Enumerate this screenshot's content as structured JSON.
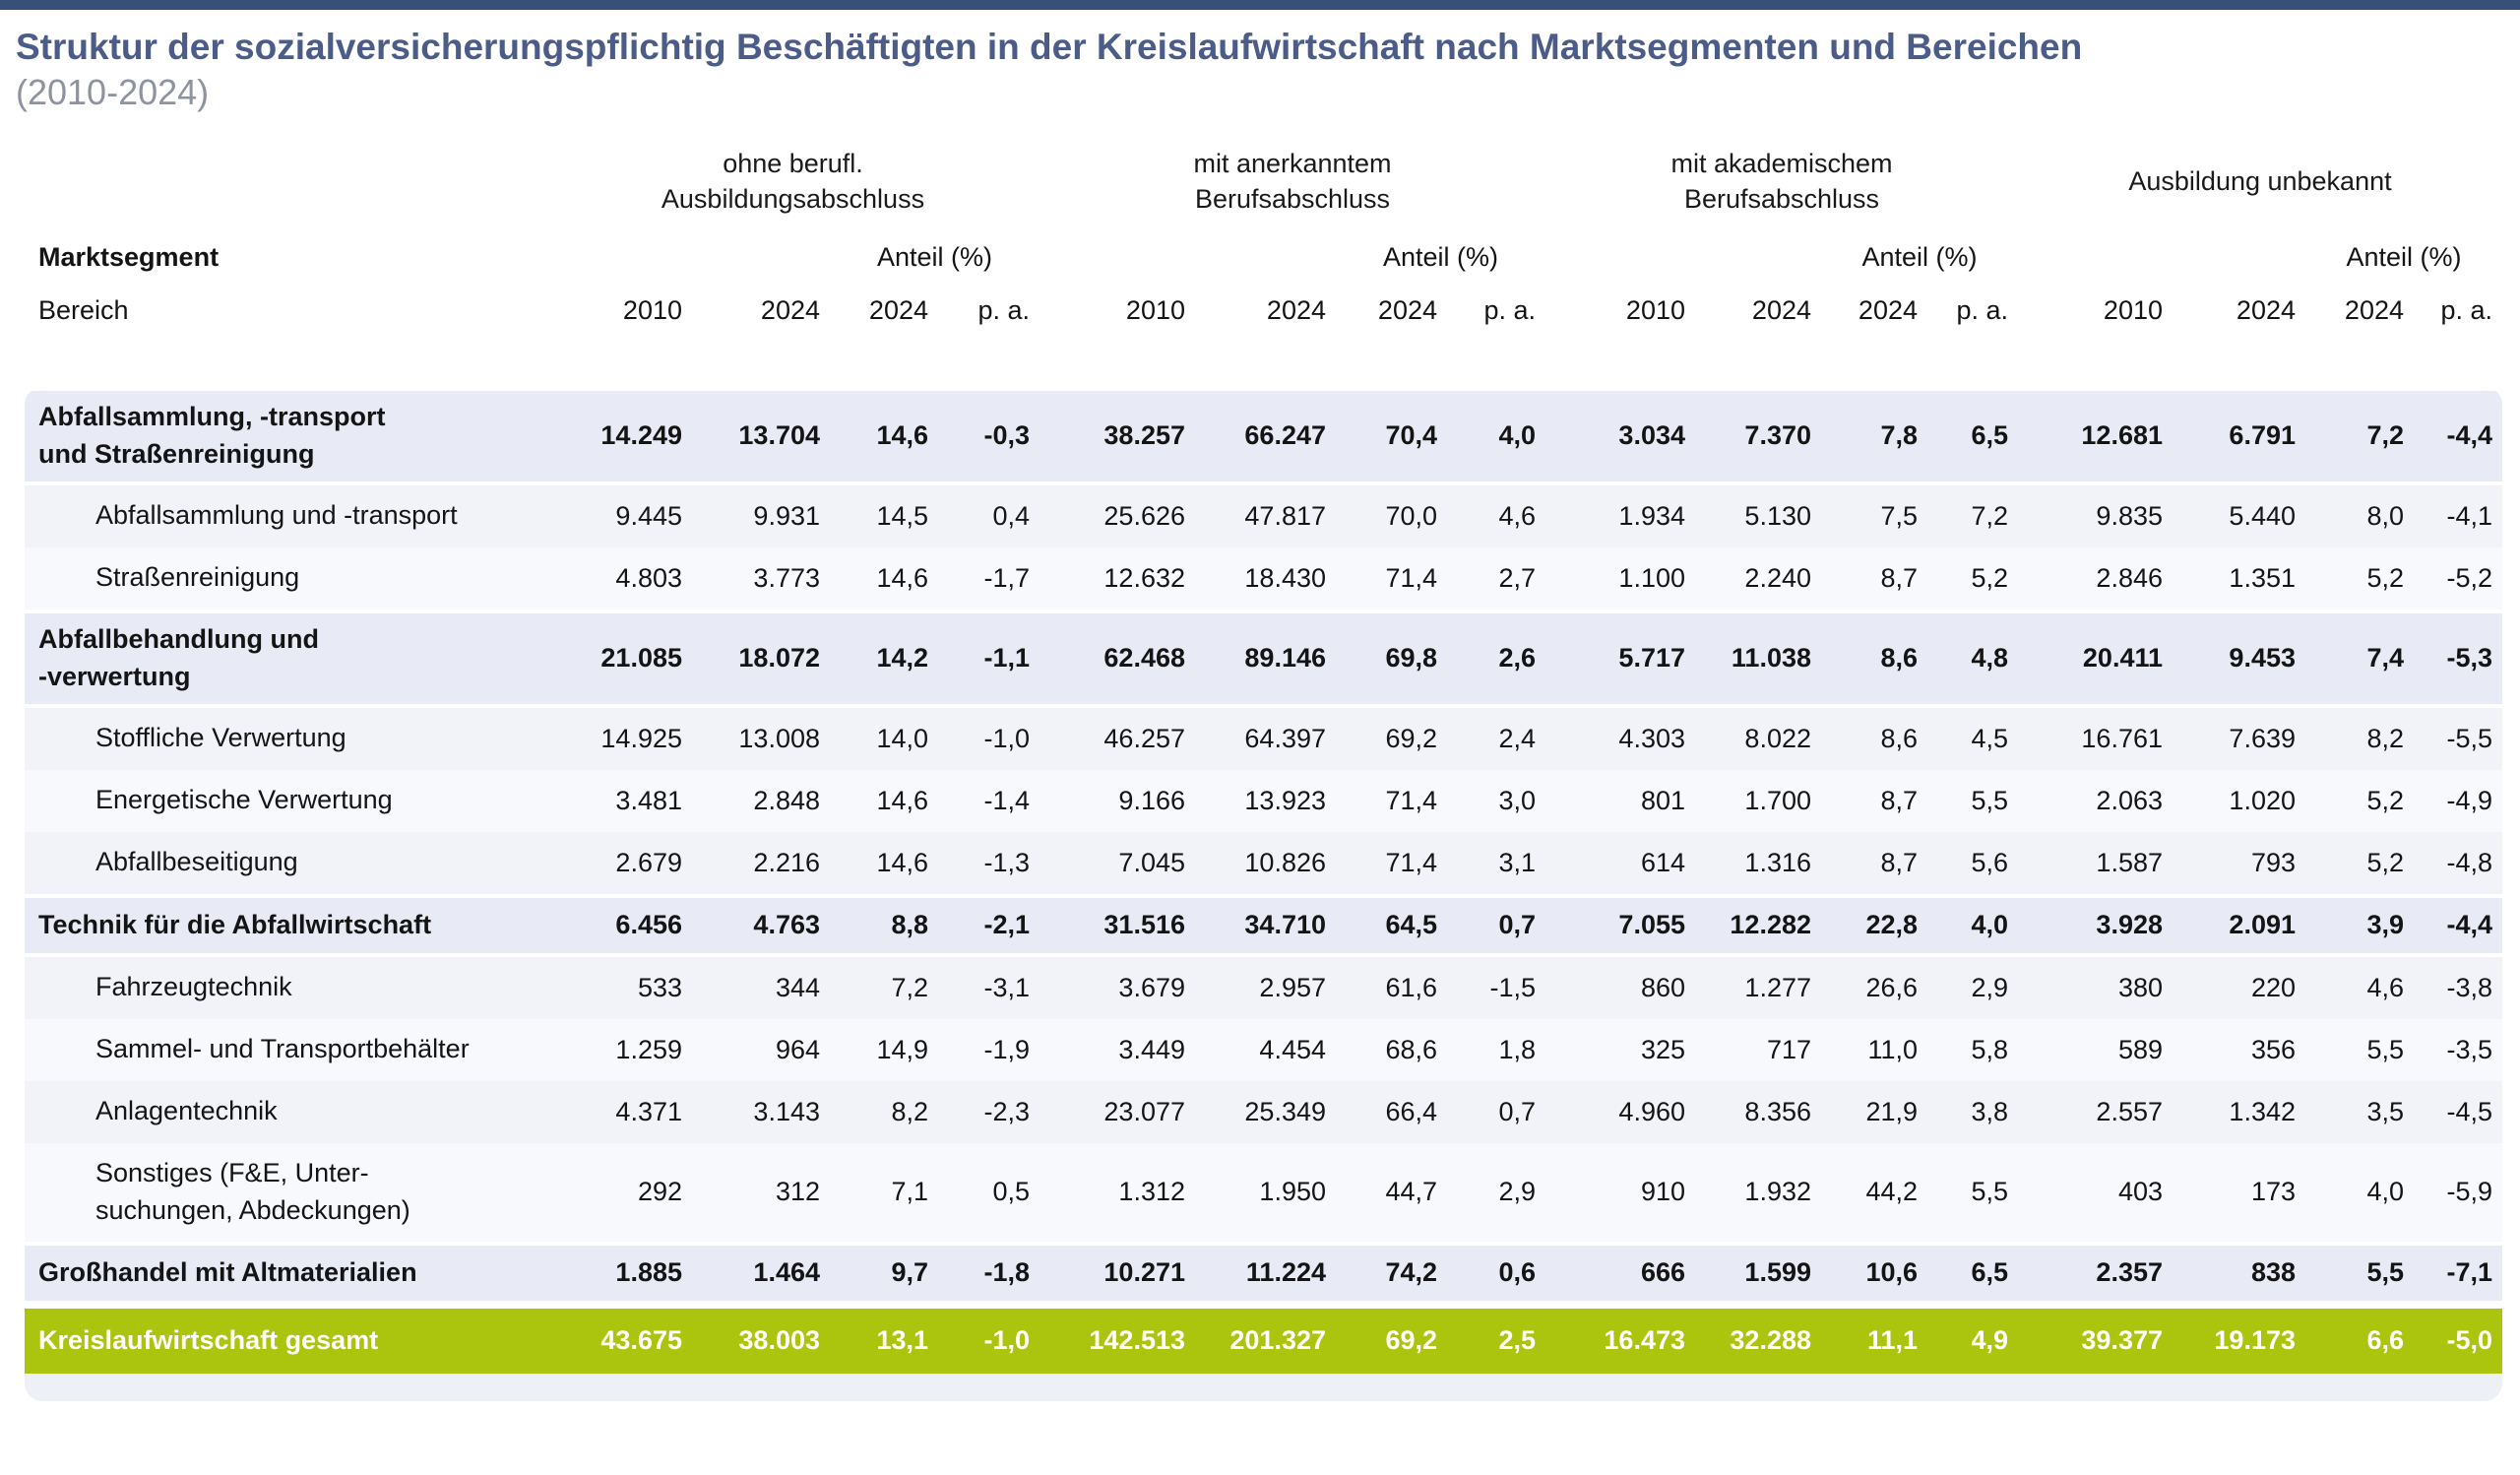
{
  "page": {
    "title": "Struktur der sozialversicherungspflichtig Beschäftigten in der Kreislaufwirtschaft nach Marktsegmenten und Bereichen",
    "subtitle": "(2010-2024)"
  },
  "colors": {
    "top_bar": "#375077",
    "title_text": "#4B5C88",
    "subtitle_text": "#8D93A0",
    "segment_row_bg": "#E8EBF6",
    "sub_row_bg": "#F4F6F9",
    "total_row_bg": "#ABC40D",
    "total_row_text": "#FFFFFF",
    "table_panel_bg": "#EDF0F4"
  },
  "chart_data": {
    "type": "table",
    "title": "Struktur der sozialversicherungspflichtig Beschäftigten in der Kreislaufwirtschaft nach Marktsegmenten und Bereichen",
    "subtitle": "(2010-2024)",
    "row_header": {
      "title": "Marktsegment",
      "sub": "Bereich"
    },
    "share_header": "Anteil (%)",
    "column_groups": [
      "ohne berufl.\nAusbildungsabschluss",
      "mit anerkanntem\nBerufsabschluss",
      "mit akademischem\nBerufsabschluss",
      "Ausbildung unbekannt"
    ],
    "sub_columns": [
      "2010",
      "2024",
      "2024",
      "p. a."
    ],
    "rows": [
      {
        "type": "segment",
        "label": "Abfallsammlung, -transport\nund Straßenreinigung",
        "values": [
          "14.249",
          "13.704",
          "14,6",
          "-0,3",
          "38.257",
          "66.247",
          "70,4",
          "4,0",
          "3.034",
          "7.370",
          "7,8",
          "6,5",
          "12.681",
          "6.791",
          "7,2",
          "-4,4"
        ]
      },
      {
        "type": "sub",
        "label": "Abfallsammlung und -transport",
        "values": [
          "9.445",
          "9.931",
          "14,5",
          "0,4",
          "25.626",
          "47.817",
          "70,0",
          "4,6",
          "1.934",
          "5.130",
          "7,5",
          "7,2",
          "9.835",
          "5.440",
          "8,0",
          "-4,1"
        ]
      },
      {
        "type": "sub",
        "label": "Straßenreinigung",
        "values": [
          "4.803",
          "3.773",
          "14,6",
          "-1,7",
          "12.632",
          "18.430",
          "71,4",
          "2,7",
          "1.100",
          "2.240",
          "8,7",
          "5,2",
          "2.846",
          "1.351",
          "5,2",
          "-5,2"
        ]
      },
      {
        "type": "segment",
        "label": "Abfallbehandlung und\n-verwertung",
        "values": [
          "21.085",
          "18.072",
          "14,2",
          "-1,1",
          "62.468",
          "89.146",
          "69,8",
          "2,6",
          "5.717",
          "11.038",
          "8,6",
          "4,8",
          "20.411",
          "9.453",
          "7,4",
          "-5,3"
        ]
      },
      {
        "type": "sub",
        "label": "Stoffliche Verwertung",
        "values": [
          "14.925",
          "13.008",
          "14,0",
          "-1,0",
          "46.257",
          "64.397",
          "69,2",
          "2,4",
          "4.303",
          "8.022",
          "8,6",
          "4,5",
          "16.761",
          "7.639",
          "8,2",
          "-5,5"
        ]
      },
      {
        "type": "sub",
        "label": "Energetische Verwertung",
        "values": [
          "3.481",
          "2.848",
          "14,6",
          "-1,4",
          "9.166",
          "13.923",
          "71,4",
          "3,0",
          "801",
          "1.700",
          "8,7",
          "5,5",
          "2.063",
          "1.020",
          "5,2",
          "-4,9"
        ]
      },
      {
        "type": "sub",
        "label": "Abfallbeseitigung",
        "values": [
          "2.679",
          "2.216",
          "14,6",
          "-1,3",
          "7.045",
          "10.826",
          "71,4",
          "3,1",
          "614",
          "1.316",
          "8,7",
          "5,6",
          "1.587",
          "793",
          "5,2",
          "-4,8"
        ]
      },
      {
        "type": "segment",
        "label": "Technik für die Abfallwirtschaft",
        "values": [
          "6.456",
          "4.763",
          "8,8",
          "-2,1",
          "31.516",
          "34.710",
          "64,5",
          "0,7",
          "7.055",
          "12.282",
          "22,8",
          "4,0",
          "3.928",
          "2.091",
          "3,9",
          "-4,4"
        ]
      },
      {
        "type": "sub",
        "label": "Fahrzeugtechnik",
        "values": [
          "533",
          "344",
          "7,2",
          "-3,1",
          "3.679",
          "2.957",
          "61,6",
          "-1,5",
          "860",
          "1.277",
          "26,6",
          "2,9",
          "380",
          "220",
          "4,6",
          "-3,8"
        ]
      },
      {
        "type": "sub",
        "label": "Sammel- und Transportbehälter",
        "values": [
          "1.259",
          "964",
          "14,9",
          "-1,9",
          "3.449",
          "4.454",
          "68,6",
          "1,8",
          "325",
          "717",
          "11,0",
          "5,8",
          "589",
          "356",
          "5,5",
          "-3,5"
        ]
      },
      {
        "type": "sub",
        "label": "Anlagentechnik",
        "values": [
          "4.371",
          "3.143",
          "8,2",
          "-2,3",
          "23.077",
          "25.349",
          "66,4",
          "0,7",
          "4.960",
          "8.356",
          "21,9",
          "3,8",
          "2.557",
          "1.342",
          "3,5",
          "-4,5"
        ]
      },
      {
        "type": "sub",
        "label": "Sonstiges (F&E, Unter-\nsuchungen, Abdeckungen)",
        "values": [
          "292",
          "312",
          "7,1",
          "0,5",
          "1.312",
          "1.950",
          "44,7",
          "2,9",
          "910",
          "1.932",
          "44,2",
          "5,5",
          "403",
          "173",
          "4,0",
          "-5,9"
        ]
      },
      {
        "type": "segment",
        "label": "Großhandel mit Altmaterialien",
        "values": [
          "1.885",
          "1.464",
          "9,7",
          "-1,8",
          "10.271",
          "11.224",
          "74,2",
          "0,6",
          "666",
          "1.599",
          "10,6",
          "6,5",
          "2.357",
          "838",
          "5,5",
          "-7,1"
        ]
      },
      {
        "type": "total",
        "label": "Kreislaufwirtschaft gesamt",
        "values": [
          "43.675",
          "38.003",
          "13,1",
          "-1,0",
          "142.513",
          "201.327",
          "69,2",
          "2,5",
          "16.473",
          "32.288",
          "11,1",
          "4,9",
          "39.377",
          "19.173",
          "6,6",
          "-5,0"
        ]
      }
    ]
  }
}
